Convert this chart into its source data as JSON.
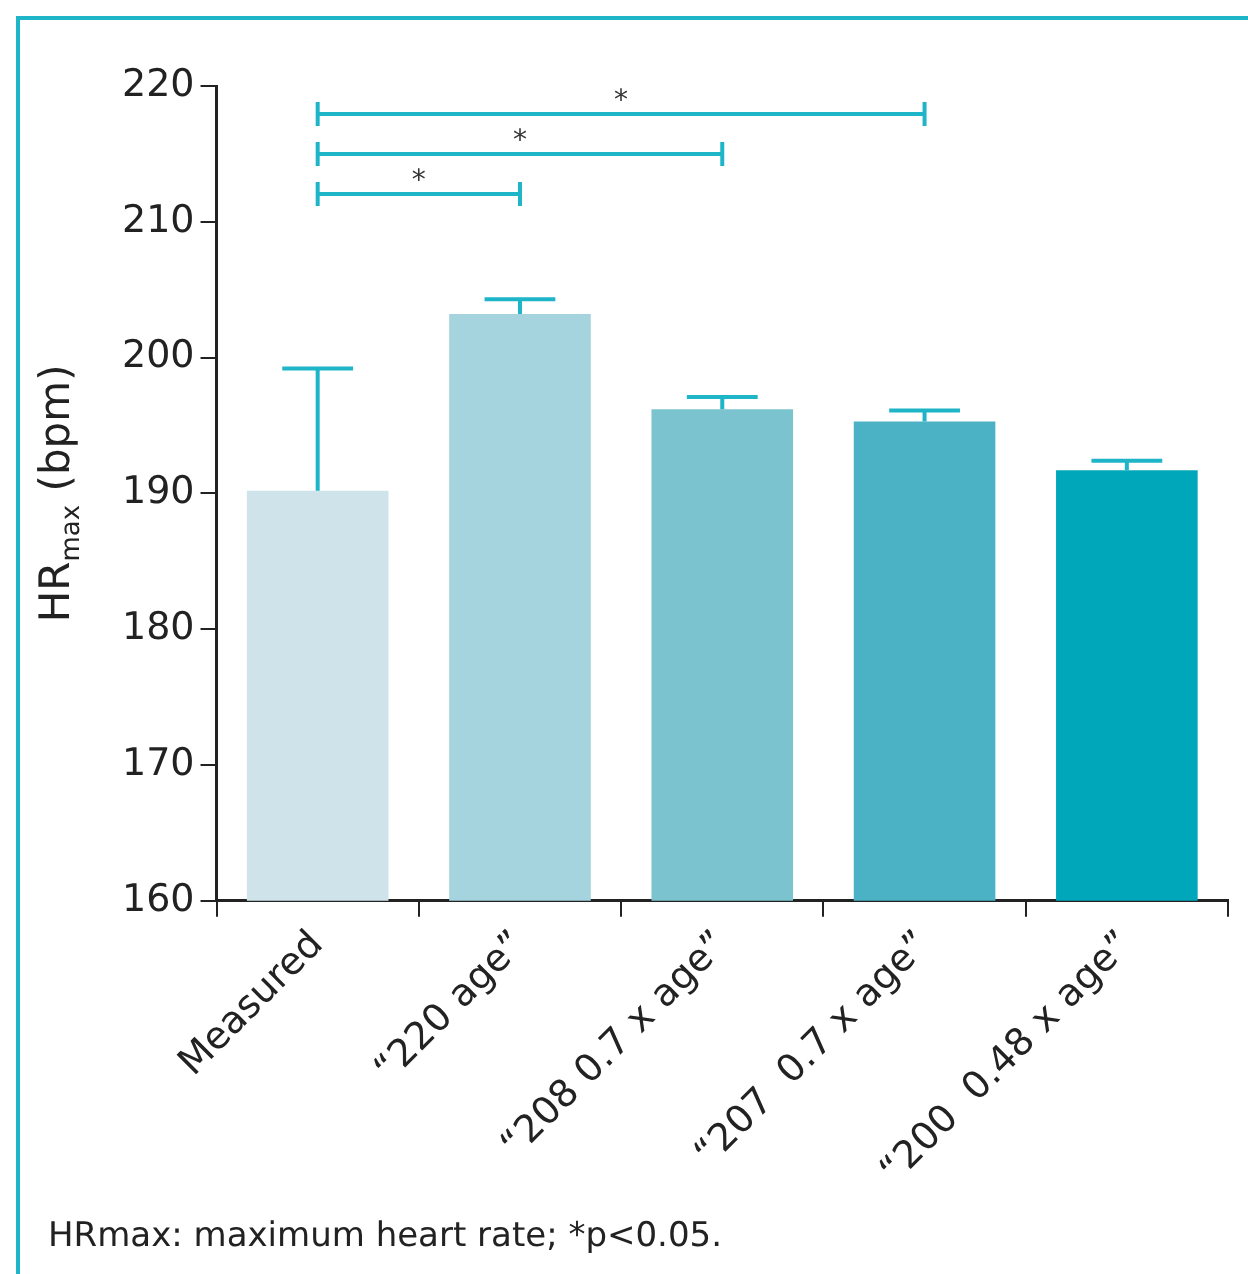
{
  "chart_data": {
    "type": "bar",
    "ylabel": "HR$_{max}$ (bpm)",
    "categories": [
      "Measured",
      "“220 age”",
      "“208 0.7 x age”",
      "“207  0.7 x age”",
      "“200  0.48 x age”"
    ],
    "values": [
      190.2,
      203.2,
      196.2,
      195.3,
      191.7
    ],
    "colors": [
      "#cfe4ea",
      "#a5d3de",
      "#7ac3cf",
      "#4bb2c5",
      "#00a6b9"
    ],
    "errors": [
      [
        190.2,
        199.2
      ],
      [
        203.2,
        204.3
      ],
      [
        196.2,
        197.1
      ],
      [
        195.3,
        196.1
      ],
      [
        191.7,
        192.4
      ]
    ],
    "ylim": [
      160,
      220
    ],
    "yticks": [
      160,
      170,
      180,
      190,
      200,
      210,
      220
    ],
    "grid": false,
    "legend": false,
    "annotations": [
      "*",
      "*",
      "*",
      "HRmax: maximum heart rate; *p<0.05."
    ]
  }
}
